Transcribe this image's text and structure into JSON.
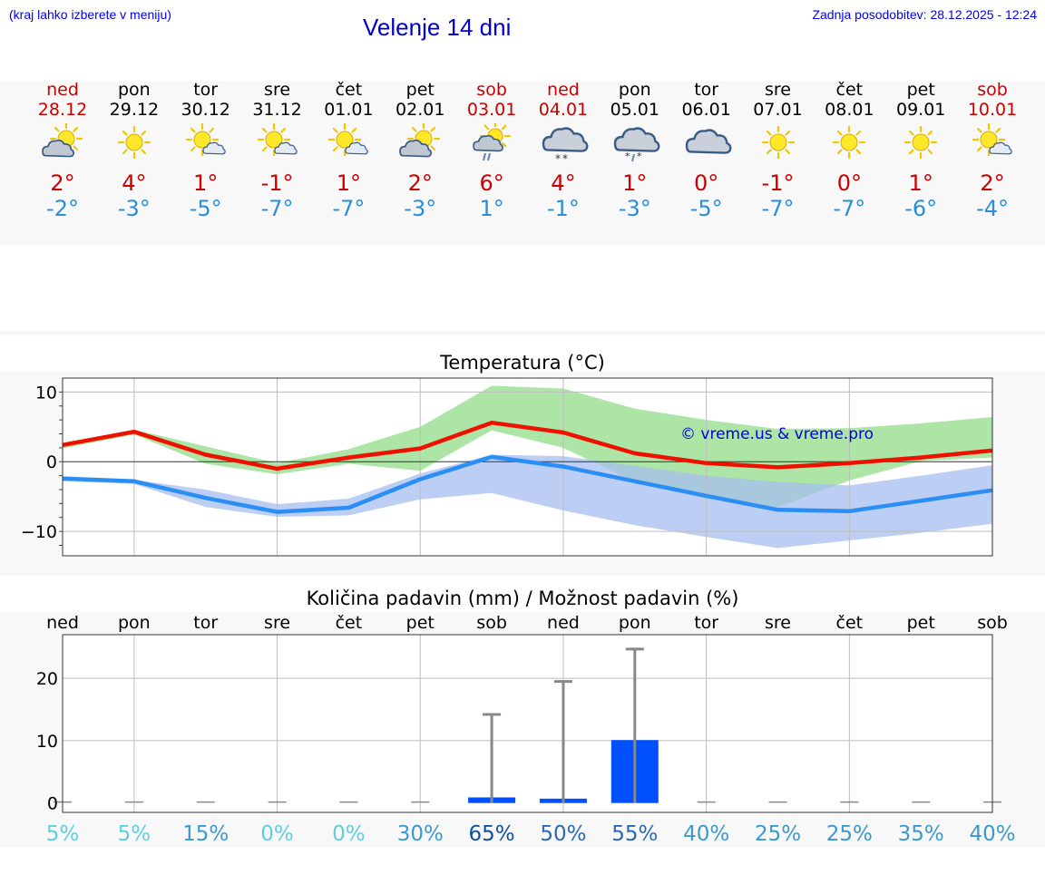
{
  "header": {
    "left_note": "(kraj lahko izberete v meniju)",
    "title": "Velenje 14 dni",
    "last_update": "Zadnja posodobitev: 28.12.2025 - 12:24"
  },
  "colors": {
    "weekend": "#cc0000",
    "max_line": "#ee1100",
    "min_line": "#2a8ef5",
    "bar": "#0050ff"
  },
  "days": [
    {
      "name": "ned",
      "date": "28.12",
      "weekend": true,
      "icon": "partly-cloudy-icon",
      "tmax": "2°",
      "tmin": "-2°"
    },
    {
      "name": "pon",
      "date": "29.12",
      "weekend": false,
      "icon": "sunny-icon",
      "tmax": "4°",
      "tmin": "-3°"
    },
    {
      "name": "tor",
      "date": "30.12",
      "weekend": false,
      "icon": "sun-small-cloud-icon",
      "tmax": "1°",
      "tmin": "-5°"
    },
    {
      "name": "sre",
      "date": "31.12",
      "weekend": false,
      "icon": "sun-small-cloud-icon",
      "tmax": "-1°",
      "tmin": "-7°"
    },
    {
      "name": "čet",
      "date": "01.01",
      "weekend": false,
      "icon": "sun-small-cloud-icon",
      "tmax": "1°",
      "tmin": "-7°"
    },
    {
      "name": "pet",
      "date": "02.01",
      "weekend": false,
      "icon": "partly-cloudy-icon",
      "tmax": "2°",
      "tmin": "-3°"
    },
    {
      "name": "sob",
      "date": "03.01",
      "weekend": true,
      "icon": "sun-cloud-rain-icon",
      "tmax": "6°",
      "tmin": "1°"
    },
    {
      "name": "ned",
      "date": "04.01",
      "weekend": true,
      "icon": "cloudy-snow-icon",
      "tmax": "4°",
      "tmin": "-1°"
    },
    {
      "name": "pon",
      "date": "05.01",
      "weekend": false,
      "icon": "cloudy-sleet-icon",
      "tmax": "1°",
      "tmin": "-3°"
    },
    {
      "name": "tor",
      "date": "06.01",
      "weekend": false,
      "icon": "cloudy-icon",
      "tmax": "0°",
      "tmin": "-5°"
    },
    {
      "name": "sre",
      "date": "07.01",
      "weekend": false,
      "icon": "sunny-icon",
      "tmax": "-1°",
      "tmin": "-7°"
    },
    {
      "name": "čet",
      "date": "08.01",
      "weekend": false,
      "icon": "sunny-icon",
      "tmax": "0°",
      "tmin": "-7°"
    },
    {
      "name": "pet",
      "date": "09.01",
      "weekend": false,
      "icon": "sunny-icon",
      "tmax": "1°",
      "tmin": "-6°"
    },
    {
      "name": "sob",
      "date": "10.01",
      "weekend": true,
      "icon": "sun-small-cloud-icon",
      "tmax": "2°",
      "tmin": "-4°"
    }
  ],
  "chart_data": [
    {
      "type": "line",
      "title": "Temperatura (°C)",
      "watermark": "© vreme.us & vreme.pro",
      "x_count": 14,
      "ylim": [
        -13.5,
        12
      ],
      "yticks": [
        10,
        0,
        -10
      ],
      "ytick_labels": [
        "10",
        "0",
        "−10"
      ],
      "series": [
        {
          "name": "max",
          "color": "#ee1100",
          "values": [
            2.4,
            4.3,
            1.0,
            -1.0,
            0.6,
            1.9,
            5.6,
            4.2,
            1.2,
            -0.2,
            -0.8,
            -0.2,
            0.6,
            1.6
          ]
        },
        {
          "name": "min",
          "color": "#2a8ef5",
          "values": [
            -2.4,
            -2.8,
            -5.2,
            -7.2,
            -6.6,
            -2.5,
            0.7,
            -0.7,
            -2.8,
            -4.9,
            -6.9,
            -7.1,
            -5.6,
            -4.1
          ]
        }
      ],
      "bands": [
        {
          "name": "max_range",
          "color": "#a8e4a0",
          "upper": [
            2.7,
            4.6,
            2.2,
            -0.2,
            1.8,
            5.0,
            10.9,
            10.5,
            7.6,
            6.0,
            4.7,
            4.8,
            5.5,
            6.4
          ],
          "lower": [
            1.9,
            3.9,
            -0.3,
            -1.8,
            -0.3,
            -1.3,
            4.5,
            2.0,
            -2.9,
            -5.3,
            -6.5,
            -2.7,
            0.1,
            0.6
          ]
        },
        {
          "name": "min_range",
          "color": "#a5bdf0",
          "upper": [
            -2.1,
            -2.6,
            -4.0,
            -6.1,
            -5.3,
            -1.7,
            1.0,
            0.8,
            -0.6,
            -2.0,
            -2.9,
            -3.4,
            -2.0,
            -0.5
          ],
          "lower": [
            -2.8,
            -3.2,
            -6.5,
            -7.9,
            -7.7,
            -5.4,
            -4.5,
            -7.0,
            -9.1,
            -10.8,
            -12.4,
            -11.3,
            -10.2,
            -8.9
          ]
        }
      ]
    },
    {
      "type": "bar",
      "title": "Količina padavin (mm) / Možnost padavin (%)",
      "categories": [
        "ned",
        "pon",
        "tor",
        "sre",
        "čet",
        "pet",
        "sob",
        "ned",
        "pon",
        "tor",
        "sre",
        "čet",
        "pet",
        "sob"
      ],
      "ylim": [
        -1.5,
        27
      ],
      "yticks": [
        20,
        10,
        0
      ],
      "ytick_labels": [
        "20",
        "10",
        "0"
      ],
      "values": [
        0,
        0,
        0,
        0,
        0,
        0,
        0.9,
        0.7,
        10.1,
        0,
        0,
        0,
        0,
        0
      ],
      "error_max": [
        0,
        0,
        0,
        0,
        0,
        0,
        14.2,
        19.5,
        24.7,
        0,
        0,
        0,
        0,
        0
      ],
      "probability_labels": [
        "5%",
        "5%",
        "15%",
        "0%",
        "0%",
        "30%",
        "65%",
        "50%",
        "55%",
        "40%",
        "25%",
        "25%",
        "35%",
        "40%"
      ],
      "probability_values": [
        5,
        5,
        15,
        0,
        0,
        30,
        65,
        50,
        55,
        40,
        25,
        25,
        35,
        40
      ]
    }
  ]
}
